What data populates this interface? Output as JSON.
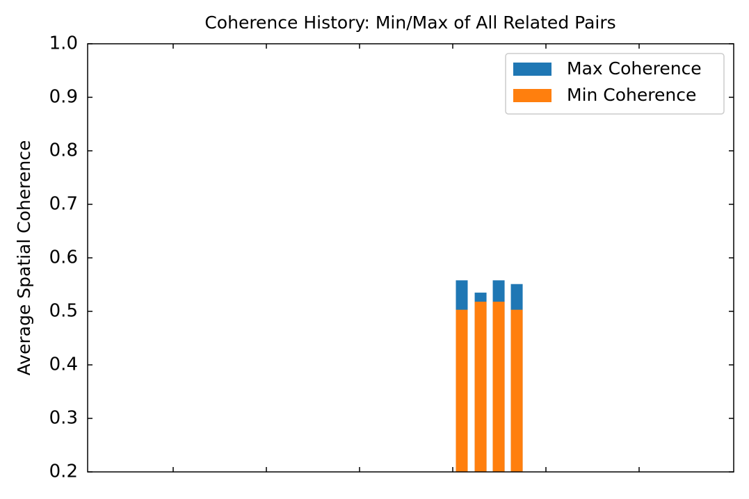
{
  "chart_data": {
    "type": "bar",
    "title": "Coherence History: Min/Max of All Related Pairs",
    "y_label": "Average Spatial Coherence",
    "x": [
      4.097,
      4.299,
      4.493,
      4.687
    ],
    "series": [
      {
        "name": "Max Coherence",
        "color": "#1f77b4",
        "values": [
          0.558,
          0.535,
          0.558,
          0.551
        ]
      },
      {
        "name": "Min Coherence",
        "color": "#ff7f0e",
        "values": [
          0.503,
          0.518,
          0.518,
          0.503
        ]
      }
    ],
    "xlim": [
      0.082,
      7.015
    ],
    "xticks": [
      1,
      2,
      3,
      4,
      5,
      6
    ],
    "ylim": [
      0.2,
      1
    ],
    "yticks": [
      0.2,
      0.3,
      0.4,
      0.5,
      0.6,
      0.7,
      0.8,
      0.9,
      {
        "value": 1,
        "label": "1.0"
      }
    ],
    "grid": false,
    "legend": "upper right"
  }
}
